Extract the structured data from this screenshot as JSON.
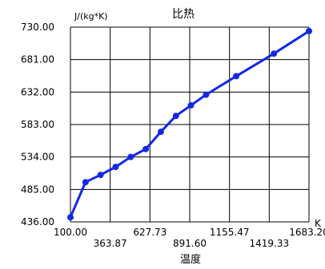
{
  "chart_data": {
    "type": "line",
    "title": "比热",
    "xlabel": "温度",
    "ylabel": "J/(kg*K)",
    "x_unit": "K",
    "xlim": [
      100.0,
      1683.2
    ],
    "ylim": [
      436.0,
      730.0
    ],
    "x_ticks": [
      "100.00",
      "363.87",
      "627.73",
      "891.60",
      "1155.47",
      "1419.33",
      "1683.20"
    ],
    "y_ticks": [
      "730.00",
      "681.00",
      "632.00",
      "583.00",
      "534.00",
      "485.00",
      "436.00"
    ],
    "grid": true,
    "series": [
      {
        "x": [
          100,
          200,
          300,
          400,
          500,
          600,
          700,
          800,
          900,
          1000,
          1200,
          1450,
          1683.2
        ],
        "y": [
          443,
          496,
          507,
          519,
          534,
          546,
          572,
          596,
          612,
          628,
          656,
          690,
          724
        ]
      }
    ],
    "colors": {
      "line": "#1428e6",
      "grid": "#000000",
      "background": "#ffffff"
    }
  }
}
